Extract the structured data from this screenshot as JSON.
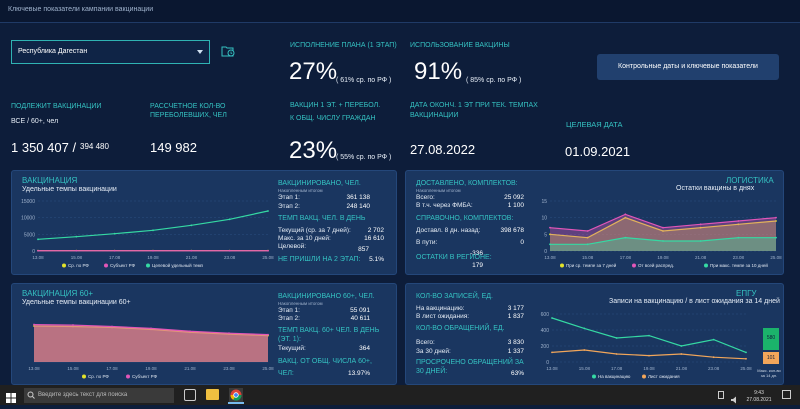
{
  "header": {
    "title": "Ключевые показатели кампании вакцинации"
  },
  "region": {
    "value": "Республика Дагестан"
  },
  "button": {
    "label": "Контрольные даты и ключевые показатели"
  },
  "plan": {
    "label": "ИСПОЛНЕНИЕ ПЛАНА (1 ЭТАП)",
    "value": "27%",
    "note": "( 61% ср. по РФ )"
  },
  "vaccine_use": {
    "label": "ИСПОЛЬЗОВАНИЕ ВАКЦИНЫ",
    "value": "91%",
    "note": "( 85% ср. по РФ )"
  },
  "subject": {
    "label": "ПОДЛЕЖИТ ВАКЦИНАЦИИ",
    "sub": "ВСЕ / 60+, чел",
    "value": "1 350 407 /",
    "value2": "394 480"
  },
  "revacc": {
    "label1": "РАССЧЕТНОЕ КОЛ-ВО",
    "label2": "ПЕРЕБОЛЕВШИХ, ЧЕЛ",
    "value": "149 982"
  },
  "share": {
    "label1": "ВАКЦИН 1 ЭТ. + ПЕРЕБОЛ.",
    "label2": "К ОБЩ. ЧИСЛУ ГРАЖДАН",
    "value": "23%",
    "note": "( 55% ср. по РФ )"
  },
  "finish": {
    "label1": "ДАТА ОКОНЧ. 1 ЭТ ПРИ ТЕК. ТЕМПАХ",
    "label2": "ВАКЦИНАЦИИ",
    "value": "27.08.2022"
  },
  "target": {
    "label": "ЦЕЛЕВАЯ ДАТА",
    "value": "01.09.2021"
  },
  "vacc": {
    "title": "ВАКЦИНАЦИЯ",
    "subtitle": "Удельные темпы вакцинации",
    "r_title": "ВАКЦИНИРОВАНО, ЧЕЛ.",
    "r_sub": "Накопленным итогом",
    "stage1_label": "Этап 1:",
    "stage1": "361 138",
    "stage2_label": "Этап 2:",
    "stage2": "248 140",
    "pace_label": "ТЕМП ВАКЦ. ЧЕЛ. В ДЕНЬ",
    "cur_label": "Текущий (ср. за 7 дней):",
    "cur": "2 702",
    "max_label": "Макс. за 10 дней:",
    "max": "16 610",
    "target_label": "Целевой:",
    "target": "857",
    "not_label": "НЕ ПРИШЛИ НА 2 ЭТАП:",
    "not": "5.1%"
  },
  "vacc60": {
    "title": "ВАКЦИНАЦИЯ 60+",
    "subtitle": "Удельные темпы вакцинации 60+",
    "r_title": "ВАКЦИНИРОВАНО 60+, ЧЕЛ.",
    "r_sub": "Накопленным итогом",
    "stage1_label": "Этап 1:",
    "stage1": "55 091",
    "stage2_label": "Этап 2:",
    "stage2": "40 611",
    "pace_label": "ТЕМП ВАКЦ. 60+ ЧЕЛ. В ДЕНЬ",
    "pace_label2": "(ЭТ. 1):",
    "cur_label": "Текущий:",
    "cur": "364",
    "share_label1": "ВАКЦ. ОТ ОБЩ. ЧИСЛА 60+,",
    "share_label2": "ЧЕЛ:",
    "share": "13.97%"
  },
  "logistics": {
    "title": "ДОСТАВЛЕНО, КОМПЛЕКТОВ:",
    "sub": "Накопленным итогом",
    "total_label": "Всего:",
    "total": "25 092",
    "fmba_label": "В т.ч. через ФМБА:",
    "fmba": "1 100",
    "ref_title": "СПРАВОЧНО, КОМПЛЕКТОВ:",
    "deliv_label": "Доставл. 8 дн. назад:",
    "deliv": "398 678",
    "way_label": "В пути:",
    "way": "0",
    "rest_label": "ОСТАТКИ В РЕГИОНЕ:",
    "rest1": "-336",
    "rest2": "179",
    "chart_title": "ЛОГИСТИКА",
    "chart_sub": "Остатки вакцины в днях"
  },
  "epgu": {
    "title": "КОЛ-ВО ЗАПИСЕЙ, ЕД.",
    "vacc_label": "На вакцинацию:",
    "vacc": "3 177",
    "wait_label": "В лист ожидания:",
    "wait": "1 837",
    "req_title": "КОЛ-ВО ОБРАЩЕНИЙ, ЕД.",
    "total_label": "Всего:",
    "total": "3 830",
    "d30_label": "За 30 дней:",
    "d30": "1 337",
    "late_label1": "ПРОСРОЧЕНО ОБРАЩЕНИЙ ЗА",
    "late_label2": "30 ДНЕЙ:",
    "late": "63%",
    "chart_title": "ЕПГУ",
    "chart_sub": "Записи на вакцинацию / в лист ожидания за 14 дней",
    "bar_top": "580",
    "bar_bottom": "101",
    "bar_caption": "Макс. кол-во за 14 дн."
  },
  "taskbar": {
    "search": "Введите здесь текст для поиска",
    "time": "9:43",
    "date": "27.08.2021"
  },
  "chart_data": [
    {
      "type": "line",
      "x": [
        "13.08",
        "15.08",
        "17.08",
        "19.08",
        "21.08",
        "23.08",
        "25.08"
      ],
      "ylim": [
        0,
        15000
      ],
      "yticks": [
        0,
        5000,
        10000,
        15000
      ],
      "series": [
        {
          "name": "Ср. по РФ",
          "color": "#e3e32a",
          "values": [
            120,
            120,
            120,
            120,
            120,
            120,
            120
          ]
        },
        {
          "name": "Субъект РФ",
          "color": "#e256b8",
          "values": [
            80,
            80,
            80,
            80,
            80,
            80,
            80
          ]
        },
        {
          "name": "Целевой удельный темп",
          "color": "#35d9a3",
          "values": [
            3500,
            4300,
            5200,
            6200,
            7700,
            9500,
            12000
          ]
        }
      ]
    },
    {
      "type": "area",
      "x": [
        "13.08",
        "15.08",
        "17.08",
        "19.08",
        "21.08",
        "23.08",
        "25.08"
      ],
      "ylim": [
        0,
        1
      ],
      "series": [
        {
          "name": "Ср. по РФ",
          "color": "#e3e32a",
          "values": [
            0.75,
            0.74,
            0.72,
            0.68,
            0.62,
            0.58,
            0.55
          ]
        },
        {
          "name": "Субъект РФ",
          "color": "#e256b8",
          "values": [
            0.78,
            0.77,
            0.74,
            0.7,
            0.64,
            0.6,
            0.57
          ]
        }
      ]
    },
    {
      "type": "area",
      "x": [
        "13.08",
        "15.08",
        "17.08",
        "19.08",
        "21.08",
        "23.08",
        "25.08"
      ],
      "ylim": [
        0,
        15
      ],
      "yticks": [
        0,
        5,
        10,
        15
      ],
      "series": [
        {
          "name": "При ср. темпе за 7 дней",
          "color": "#e3e32a",
          "values": [
            5,
            4,
            10,
            6,
            7,
            8,
            9
          ]
        },
        {
          "name": "От всей распред.",
          "color": "#e256b8",
          "values": [
            7,
            6,
            11,
            7,
            8,
            9,
            10
          ]
        },
        {
          "name": "При макс. темпе за 10 дней",
          "color": "#35d9a3",
          "values": [
            2,
            2,
            4,
            3,
            3,
            4,
            4
          ]
        }
      ]
    },
    {
      "type": "line",
      "x": [
        "13.08",
        "15.08",
        "17.08",
        "19.08",
        "21.08",
        "23.08",
        "25.08"
      ],
      "ylim": [
        0,
        600
      ],
      "yticks": [
        0,
        200,
        400,
        600
      ],
      "series": [
        {
          "name": "На вакцинацию",
          "color": "#35d9a3",
          "values": [
            550,
            420,
            300,
            330,
            200,
            280,
            120
          ]
        },
        {
          "name": "Лист ожидания",
          "color": "#f2a65a",
          "values": [
            120,
            150,
            100,
            80,
            100,
            60,
            40
          ]
        }
      ]
    }
  ]
}
